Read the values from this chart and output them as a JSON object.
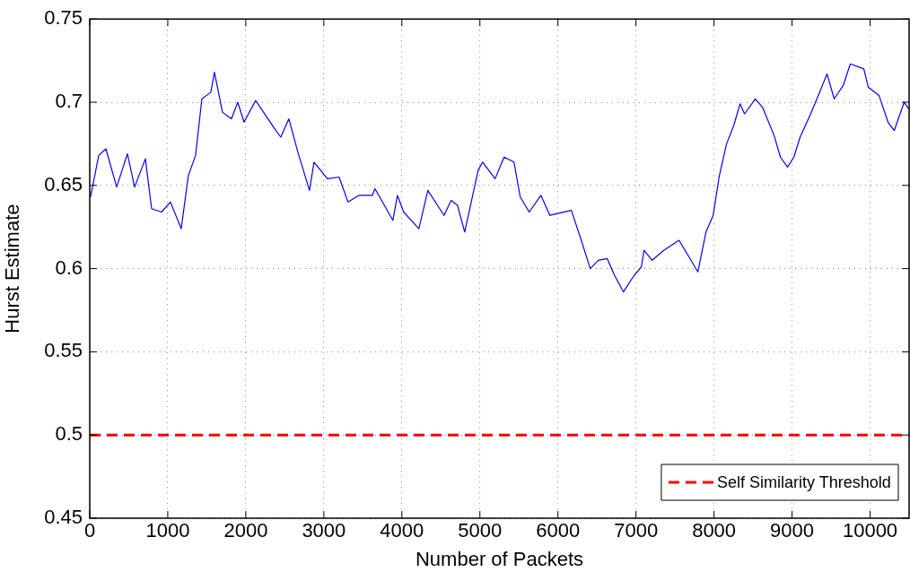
{
  "chart_data": {
    "type": "line",
    "xlabel": "Number of Packets",
    "ylabel": "Hurst Estimate",
    "xlim": [
      0,
      10500
    ],
    "xticks": [
      0,
      1000,
      2000,
      3000,
      4000,
      5000,
      6000,
      7000,
      8000,
      9000,
      10000
    ],
    "ylim": [
      0.45,
      0.75
    ],
    "yticks": [
      0.45,
      0.5,
      0.55,
      0.6,
      0.65,
      0.7,
      0.75
    ],
    "grid": true,
    "legend": "bottom right",
    "marker": "none",
    "series": [
      {
        "color": "#0000ff",
        "line_style": "solid",
        "x": [
          10,
          115,
          207,
          345,
          483,
          575,
          713,
          793,
          920,
          1034,
          1172,
          1264,
          1356,
          1437,
          1552,
          1598,
          1701,
          1816,
          1897,
          1977,
          2126,
          2356,
          2448,
          2552,
          2667,
          2816,
          2874,
          3046,
          3195,
          3310,
          3448,
          3621,
          3655,
          3885,
          3943,
          4023,
          4218,
          4333,
          4540,
          4632,
          4713,
          4805,
          4977,
          5034,
          5195,
          5310,
          5437,
          5517,
          5632,
          5782,
          5897,
          6172,
          6299,
          6414,
          6517,
          6632,
          6724,
          6839,
          6977,
          7069,
          7103,
          7207,
          7356,
          7552,
          7667,
          7793,
          7897,
          7989,
          8069,
          8161,
          8253,
          8333,
          8391,
          8529,
          8621,
          8770,
          8851,
          8943,
          9023,
          9103,
          9230,
          9345,
          9448,
          9540,
          9655,
          9747,
          9920,
          9977,
          10115,
          10230,
          10310,
          10437,
          10494
        ],
        "values": [
          0.643,
          0.668,
          0.672,
          0.649,
          0.669,
          0.649,
          0.666,
          0.636,
          0.634,
          0.64,
          0.624,
          0.656,
          0.668,
          0.702,
          0.706,
          0.718,
          0.694,
          0.69,
          0.7,
          0.688,
          0.701,
          0.685,
          0.679,
          0.69,
          0.67,
          0.647,
          0.664,
          0.654,
          0.655,
          0.64,
          0.644,
          0.644,
          0.648,
          0.629,
          0.644,
          0.634,
          0.624,
          0.647,
          0.632,
          0.641,
          0.638,
          0.622,
          0.659,
          0.664,
          0.654,
          0.667,
          0.664,
          0.643,
          0.634,
          0.644,
          0.632,
          0.635,
          0.617,
          0.6,
          0.605,
          0.606,
          0.596,
          0.586,
          0.596,
          0.601,
          0.611,
          0.605,
          0.611,
          0.617,
          0.608,
          0.598,
          0.622,
          0.632,
          0.656,
          0.675,
          0.686,
          0.699,
          0.693,
          0.702,
          0.697,
          0.68,
          0.667,
          0.661,
          0.667,
          0.679,
          0.692,
          0.705,
          0.717,
          0.702,
          0.71,
          0.723,
          0.72,
          0.709,
          0.704,
          0.688,
          0.683,
          0.7,
          0.696
        ]
      },
      {
        "name": "Self Similarity Threshold",
        "color": "#ff0000",
        "line_style": "dashed",
        "x": [
          0,
          10500
        ],
        "values": [
          0.5,
          0.5
        ]
      }
    ]
  }
}
